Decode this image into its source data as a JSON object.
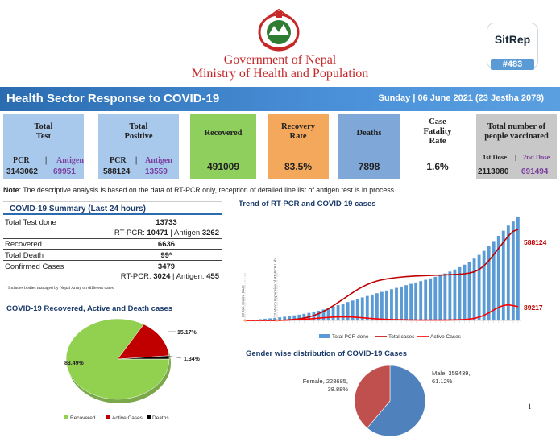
{
  "header": {
    "gov_line1": "Government of Nepal",
    "gov_line2": "Ministry of Health and Population",
    "sitrep_label": "SitRep",
    "sitrep_number": "#483"
  },
  "banner": {
    "title": "Health Sector Response to COVID-19",
    "date": "Sunday | 06 June 2021 (23 Jestha 2078)"
  },
  "cards": {
    "total_test": {
      "label": "Total\nTest",
      "pcr_label": "PCR",
      "sep": "|",
      "antigen_label": "Antigen",
      "pcr_value": "3143062",
      "antigen_value": "69951",
      "color": "#a8c8ec"
    },
    "total_positive": {
      "label": "Total\nPositive",
      "pcr_label": "PCR",
      "sep": "|",
      "antigen_label": "Antigen",
      "pcr_value": "588124",
      "antigen_value": "13559",
      "color": "#a8c8ec"
    },
    "recovered": {
      "label": "Recovered",
      "value": "491009",
      "color": "#8fcf5e"
    },
    "recovery_rate": {
      "label": "Recovery\nRate",
      "value": "83.5%",
      "color": "#f4a85c"
    },
    "deaths": {
      "label": "Deaths",
      "value": "7898",
      "color": "#7fa8d8"
    },
    "cfr": {
      "label": "Case\nFatality\nRate",
      "value": "1.6%",
      "color": "#ffffff"
    },
    "vaccinated": {
      "label": "Total number of\npeople vaccinated",
      "dose1_label": "1st Dose",
      "sep": "|",
      "dose2_label": "2nd Dose",
      "dose1_value": "2113080",
      "dose2_value": "691494",
      "color": "#c8c8c8"
    }
  },
  "note": {
    "bold": "Note",
    "text": ": The descriptive analysis is based on the data of RT-PCR only, reception of detailed line list of antigen test is in process"
  },
  "summary": {
    "title": "COVID-19 Summary (Last 24 hours)",
    "total_test_label": "Total Test done",
    "total_test_value": "13733",
    "test_breakdown_pre": "RT-PCR: ",
    "test_rtpcr": "10471",
    "test_breakdown_mid": " | Antigen:",
    "test_antigen": "3262",
    "recovered_label": "Recovered",
    "recovered_value": "6636",
    "death_label": "Total Death",
    "death_value": "99*",
    "confirmed_label": "Confirmed Cases",
    "confirmed_value": "3479",
    "conf_breakdown_pre": "RT-PCR: ",
    "conf_rtpcr": "3024",
    "conf_breakdown_mid": " | Antigen: ",
    "conf_antigen": "455",
    "footnote": "* Includes bodies managed by Nepal Army on different dates."
  },
  "pie_title": "COVID-19 Recovered, Active and Death cases",
  "trend_title": "Trend of RT-PCR and COVID-19 cases",
  "gender_title": "Gender wise distribution of COVID-19 Cases",
  "page_number": "1",
  "chart_data": [
    {
      "type": "pie",
      "title": "COVID-19 Recovered, Active and Death cases",
      "labels": [
        "Recovered",
        "Active Cases",
        "Deaths"
      ],
      "values": [
        83.49,
        15.17,
        1.34
      ],
      "value_labels": [
        "83.49%",
        "15.17%",
        "1.34%"
      ],
      "colors": [
        "#92d050",
        "#c00000",
        "#000000"
      ],
      "legend": "bottom"
    },
    {
      "type": "bar",
      "title": "Trend of RT-PCR and COVID-19 cases",
      "series": [
        {
          "name": "Total PCR done",
          "style": "bar",
          "color": "#5b9bd5",
          "values": [
            0.3,
            0.5,
            0.8,
            1.2,
            1.6,
            2.0,
            2.5,
            3.0,
            3.6,
            4.2,
            4.9,
            5.6,
            6.4,
            7.3,
            8.3,
            9.4,
            10.6,
            11.9,
            13.3,
            14.8,
            16.3,
            17.8,
            19.3,
            20.8,
            22.3,
            23.7,
            25.1,
            26.4,
            27.7,
            29.0,
            30.3,
            31.6,
            32.9,
            34.2,
            35.5,
            36.8,
            38.1,
            39.4,
            40.8,
            42.3,
            43.9,
            45.6,
            47.4,
            49.4,
            51.6,
            54.1,
            56.9,
            60.0,
            63.6,
            67.5,
            72.0,
            77.0,
            82.0,
            87.0,
            92.0,
            96.0,
            100.0
          ]
        },
        {
          "name": "Total  cases",
          "style": "line",
          "color": "#c00000",
          "values": [
            0,
            0,
            0,
            0,
            0,
            0,
            0,
            0.1,
            0.3,
            0.6,
            1.0,
            1.5,
            2.3,
            3.4,
            4.8,
            6.6,
            8.8,
            11.4,
            14.3,
            17.4,
            20.6,
            23.8,
            27.0,
            30.0,
            32.6,
            34.9,
            36.8,
            38.3,
            39.4,
            40.3,
            41.0,
            41.6,
            42.1,
            42.5,
            42.8,
            43.1,
            43.3,
            43.5,
            43.7,
            43.9,
            44.0,
            44.2,
            44.4,
            44.6,
            44.9,
            45.3,
            46.0,
            47.2,
            49.5,
            53.0,
            58.0,
            64.0,
            70.0,
            76.0,
            82.0,
            86.5,
            88.2
          ]
        },
        {
          "name": "Active Cases",
          "style": "line",
          "color": "#ff0000",
          "values": [
            0,
            0,
            0,
            0,
            0,
            0,
            0,
            0.1,
            0.2,
            0.4,
            0.6,
            0.8,
            1.1,
            1.4,
            1.8,
            2.2,
            2.6,
            3.0,
            3.3,
            3.5,
            3.6,
            3.5,
            3.3,
            3.0,
            2.6,
            2.2,
            1.8,
            1.5,
            1.2,
            1.0,
            0.8,
            0.7,
            0.6,
            0.5,
            0.45,
            0.4,
            0.38,
            0.36,
            0.35,
            0.35,
            0.36,
            0.38,
            0.42,
            0.5,
            0.65,
            0.9,
            1.3,
            2.0,
            3.2,
            5.0,
            7.4,
            10.2,
            12.8,
            14.5,
            15.2,
            14.3,
            13.4
          ]
        }
      ],
      "end_labels": [
        "588124",
        "89217"
      ],
      "annotations": [
        "23 Jan : Index Case",
        "23 March Expansion of RT-PCR Lab"
      ],
      "legend": "bottom"
    },
    {
      "type": "pie",
      "title": "Gender wise distribution of COVID-19 Cases",
      "labels": [
        "Male",
        "Female"
      ],
      "values": [
        359439,
        228685
      ],
      "value_labels": [
        "Male, 359439,\n61.12%",
        "Female, 228685,\n38.88%"
      ],
      "colors": [
        "#4f81bd",
        "#c0504d"
      ]
    }
  ],
  "colors": {
    "banner": "#2b6cb0",
    "accent_red": "#c62828",
    "accent_purple": "#7b3fa0"
  }
}
